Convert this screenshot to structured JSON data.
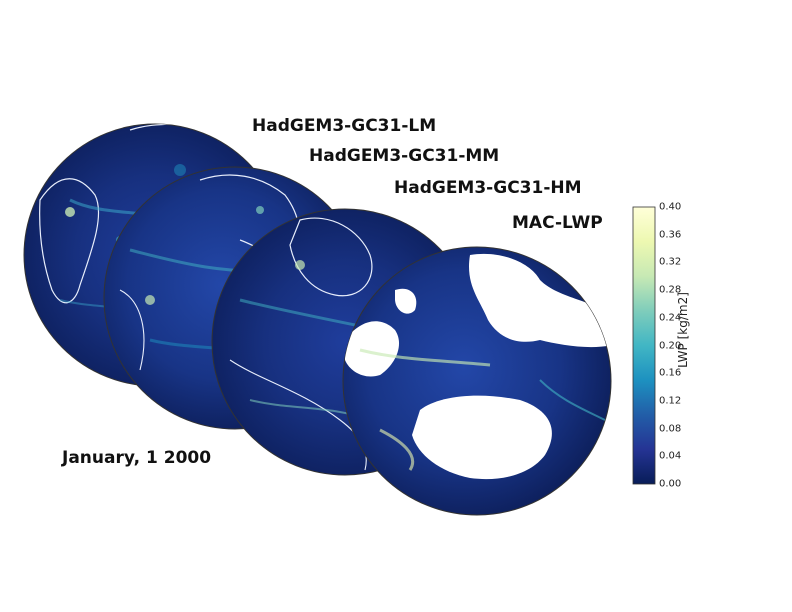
{
  "globes": [
    {
      "id": "lm",
      "label": "HadGEM3-GC31-LM"
    },
    {
      "id": "mm",
      "label": "HadGEM3-GC31-MM"
    },
    {
      "id": "hm",
      "label": "HadGEM3-GC31-HM"
    },
    {
      "id": "mac",
      "label": "MAC-LWP"
    }
  ],
  "date": "January, 1 2000",
  "colorbar": {
    "title": "LWP [kg/m2]",
    "ticks": [
      "0.00",
      "0.04",
      "0.08",
      "0.12",
      "0.16",
      "0.20",
      "0.24",
      "0.28",
      "0.32",
      "0.36",
      "0.40"
    ],
    "min": 0.0,
    "max": 0.4,
    "colors": [
      "#081d58",
      "#253494",
      "#225ea8",
      "#1d91c0",
      "#41b6c4",
      "#7fcdbb",
      "#c7e9b4",
      "#edf8b1",
      "#ffffd9"
    ]
  }
}
